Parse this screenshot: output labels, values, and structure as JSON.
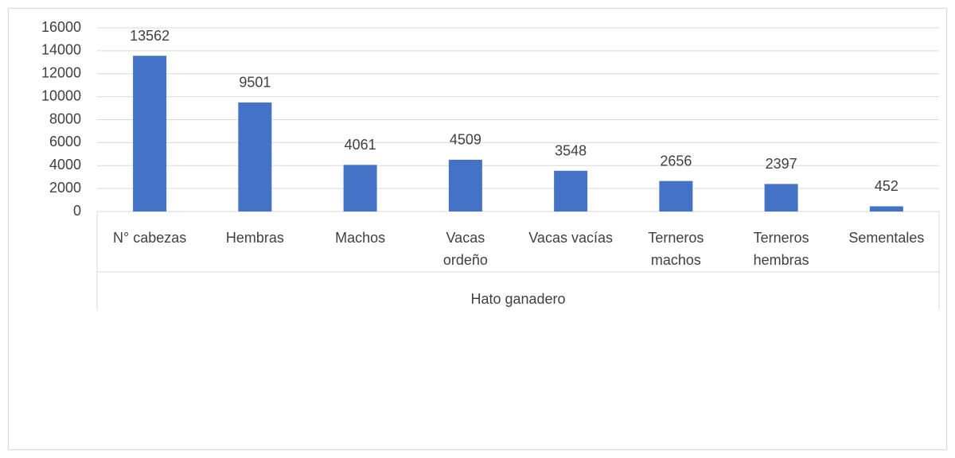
{
  "chart_data": {
    "type": "bar",
    "categories": [
      [
        "N° cabezas"
      ],
      [
        "Hembras"
      ],
      [
        "Machos"
      ],
      [
        "Vacas",
        "ordeño"
      ],
      [
        "Vacas vacías"
      ],
      [
        "Terneros",
        "machos"
      ],
      [
        "Terneros",
        "hembras"
      ],
      [
        "Sementales"
      ]
    ],
    "xlabel": "Hato ganadero",
    "values": [
      13562,
      9501,
      4061,
      4509,
      3548,
      2656,
      2397,
      452
    ],
    "color": "#4472c4",
    "ylim": [
      0,
      16000
    ],
    "yticks": [
      0,
      2000,
      4000,
      6000,
      8000,
      10000,
      12000,
      14000,
      16000
    ],
    "grid": true
  }
}
